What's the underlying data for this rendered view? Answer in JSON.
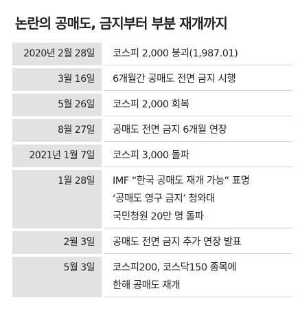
{
  "title": "논란의 공매도, 금지부터 부분 재개까지",
  "rows": [
    {
      "date": "2020년 2월 28일",
      "lines": [
        "코스피 2,000 붕괴(1,987.01)"
      ]
    },
    {
      "date": "3월 16일",
      "lines": [
        "6개월간 공매도 전면 금지 시행"
      ]
    },
    {
      "date": "5월 26일",
      "lines": [
        "코스피 2,000 회복"
      ]
    },
    {
      "date": "8월 27일",
      "lines": [
        "공매도 전면 금지 6개월 연장"
      ]
    },
    {
      "date": "2021년 1월 7일",
      "lines": [
        "코스피 3,000 돌파"
      ]
    },
    {
      "date": "1월 28일",
      "lines": [
        "IMF “한국 공매도 재개 가능” 표명",
        "‘공매도 영구 금지’ 청와대",
        "국민청원 20만 명 돌파"
      ]
    },
    {
      "date": "2월 3일",
      "lines": [
        "공매도 전면 금지 추가 연장 발표"
      ]
    },
    {
      "date": "5월 3일",
      "lines": [
        "코스피200, 코스닥150 종목에",
        "한해 공매도 재개"
      ]
    }
  ]
}
